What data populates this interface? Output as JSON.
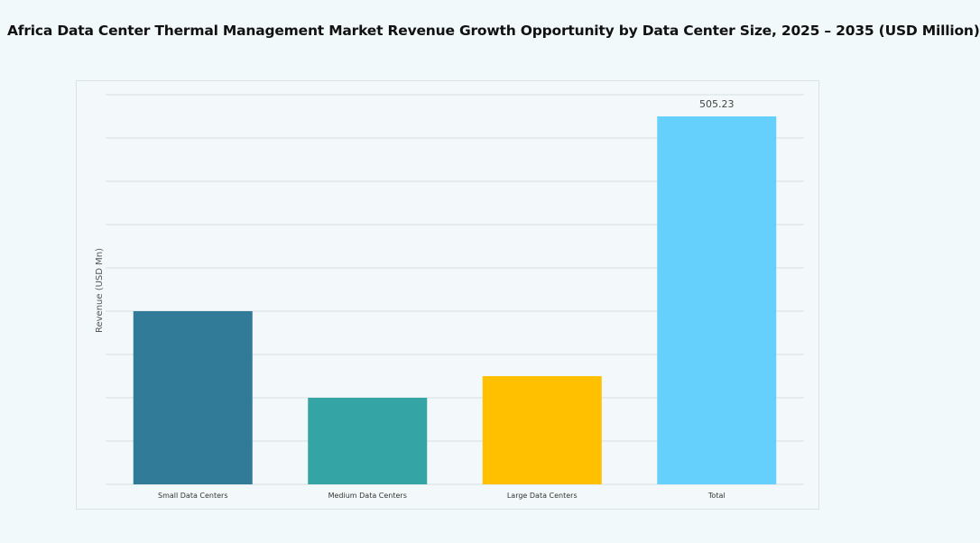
{
  "title": "Africa Data Center Thermal Management Market Revenue Growth Opportunity by Data Center Size, 2025 – 2035 (USD Million)",
  "chart_data": {
    "type": "bar",
    "title": "Africa Data Center Thermal Management Market Revenue Growth Opportunity by Data Center Size, 2025 – 2035 (USD Million)",
    "xlabel": "",
    "ylabel": "Revenue (USD Mn)",
    "categories": [
      "Small Data Centers",
      "Medium Data Centers",
      "Large Data Centers",
      "Total"
    ],
    "values": [
      237.8,
      118.9,
      148.6,
      505.23
    ],
    "data_labels": [
      "",
      "",
      "",
      "505.23"
    ],
    "colors": [
      "#317a98",
      "#35a4a5",
      "#ffc000",
      "#66d0fc"
    ],
    "ylim": [
      0,
      535
    ],
    "grid": true,
    "legend": "none"
  }
}
